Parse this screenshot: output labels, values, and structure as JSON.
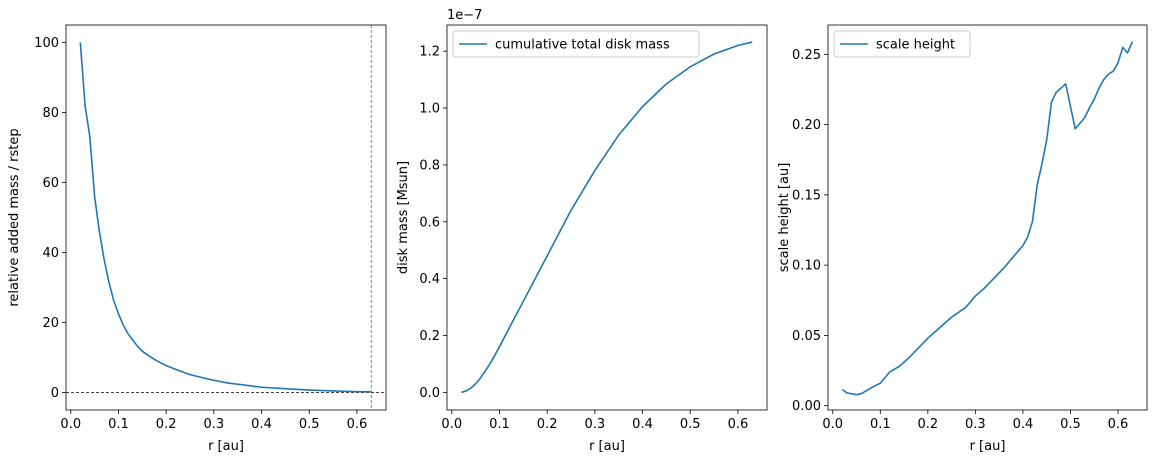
{
  "colors": {
    "series": "#1f77b4",
    "axis": "#000000",
    "background": "#ffffff",
    "legend_border": "#cccccc"
  },
  "chart_data": [
    {
      "type": "line",
      "xlabel": "r [au]",
      "ylabel": "relative added mass / rstep",
      "xlim": [
        -0.01,
        0.661
      ],
      "ylim": [
        -5.0,
        105.0
      ],
      "xticks": [
        0.0,
        0.1,
        0.2,
        0.3,
        0.4,
        0.5,
        0.6
      ],
      "xtick_labels": [
        "0.0",
        "0.1",
        "0.2",
        "0.3",
        "0.4",
        "0.5",
        "0.6"
      ],
      "yticks": [
        0,
        20,
        40,
        60,
        80,
        100
      ],
      "ytick_labels": [
        "0",
        "20",
        "40",
        "60",
        "80",
        "100"
      ],
      "legend": null,
      "reference_lines": [
        {
          "orientation": "vertical",
          "value": 0.63,
          "style": "dashed",
          "color": "#1f77b4"
        },
        {
          "orientation": "horizontal",
          "value": 0.0,
          "style": "dashed",
          "color": "#000000"
        }
      ],
      "series": [
        {
          "x": [
            0.02,
            0.03,
            0.04,
            0.05,
            0.06,
            0.07,
            0.08,
            0.09,
            0.1,
            0.11,
            0.12,
            0.13,
            0.14,
            0.15,
            0.16,
            0.18,
            0.2,
            0.22,
            0.25,
            0.28,
            0.3,
            0.33,
            0.36,
            0.4,
            0.45,
            0.5,
            0.55,
            0.6,
            0.63
          ],
          "y": [
            100.0,
            82.0,
            73.0,
            56.0,
            46.0,
            38.0,
            31.5,
            26.3,
            22.5,
            19.3,
            16.8,
            15.0,
            13.2,
            11.8,
            10.8,
            9.1,
            7.7,
            6.6,
            5.1,
            4.1,
            3.5,
            2.7,
            2.2,
            1.5,
            1.1,
            0.7,
            0.45,
            0.25,
            0.2
          ]
        }
      ]
    },
    {
      "type": "line",
      "xlabel": "r [au]",
      "ylabel": "disk mass [Msun]",
      "offset_text": "1e−7",
      "xlim": [
        -0.01,
        0.661
      ],
      "ylim": [
        -0.062,
        1.292
      ],
      "xticks": [
        0.0,
        0.1,
        0.2,
        0.3,
        0.4,
        0.5,
        0.6
      ],
      "xtick_labels": [
        "0.0",
        "0.1",
        "0.2",
        "0.3",
        "0.4",
        "0.5",
        "0.6"
      ],
      "yticks": [
        0.0,
        0.2,
        0.4,
        0.6,
        0.8,
        1.0,
        1.2
      ],
      "ytick_labels": [
        "0.0",
        "0.2",
        "0.4",
        "0.6",
        "0.8",
        "1.0",
        "1.2"
      ],
      "legend": {
        "placement": "upper-left",
        "entries": [
          "cumulative total disk mass"
        ]
      },
      "series": [
        {
          "name": "cumulative total disk mass",
          "x": [
            0.02,
            0.03,
            0.04,
            0.05,
            0.06,
            0.08,
            0.1,
            0.12,
            0.15,
            0.2,
            0.25,
            0.3,
            0.35,
            0.4,
            0.45,
            0.5,
            0.55,
            0.6,
            0.63
          ],
          "y": [
            0.0,
            0.005,
            0.015,
            0.03,
            0.05,
            0.1,
            0.16,
            0.225,
            0.32,
            0.48,
            0.64,
            0.78,
            0.905,
            1.005,
            1.085,
            1.145,
            1.19,
            1.22,
            1.232
          ]
        }
      ]
    },
    {
      "type": "line",
      "xlabel": "r [au]",
      "ylabel": "scale height [au]",
      "xlim": [
        -0.01,
        0.661
      ],
      "ylim": [
        -0.0031,
        0.2709
      ],
      "xticks": [
        0.0,
        0.1,
        0.2,
        0.3,
        0.4,
        0.5,
        0.6
      ],
      "xtick_labels": [
        "0.0",
        "0.1",
        "0.2",
        "0.3",
        "0.4",
        "0.5",
        "0.6"
      ],
      "yticks": [
        0.0,
        0.05,
        0.1,
        0.15,
        0.2,
        0.25
      ],
      "ytick_labels": [
        "0.00",
        "0.05",
        "0.10",
        "0.15",
        "0.20",
        "0.25"
      ],
      "legend": {
        "placement": "upper-left",
        "entries": [
          "scale height"
        ]
      },
      "series": [
        {
          "name": "scale height",
          "x": [
            0.02,
            0.03,
            0.04,
            0.05,
            0.06,
            0.07,
            0.08,
            0.1,
            0.12,
            0.14,
            0.16,
            0.18,
            0.2,
            0.22,
            0.25,
            0.28,
            0.3,
            0.32,
            0.34,
            0.36,
            0.38,
            0.4,
            0.41,
            0.42,
            0.43,
            0.44,
            0.45,
            0.46,
            0.47,
            0.49,
            0.51,
            0.52,
            0.53,
            0.54,
            0.55,
            0.56,
            0.57,
            0.58,
            0.59,
            0.6,
            0.61,
            0.62,
            0.63
          ],
          "y": [
            0.0115,
            0.009,
            0.0085,
            0.0078,
            0.0085,
            0.0105,
            0.0125,
            0.016,
            0.024,
            0.028,
            0.034,
            0.041,
            0.048,
            0.054,
            0.063,
            0.07,
            0.078,
            0.084,
            0.091,
            0.098,
            0.106,
            0.114,
            0.12,
            0.131,
            0.157,
            0.172,
            0.189,
            0.216,
            0.223,
            0.229,
            0.197,
            0.201,
            0.205,
            0.212,
            0.218,
            0.226,
            0.232,
            0.236,
            0.238,
            0.244,
            0.255,
            0.251,
            0.259
          ]
        }
      ]
    }
  ]
}
